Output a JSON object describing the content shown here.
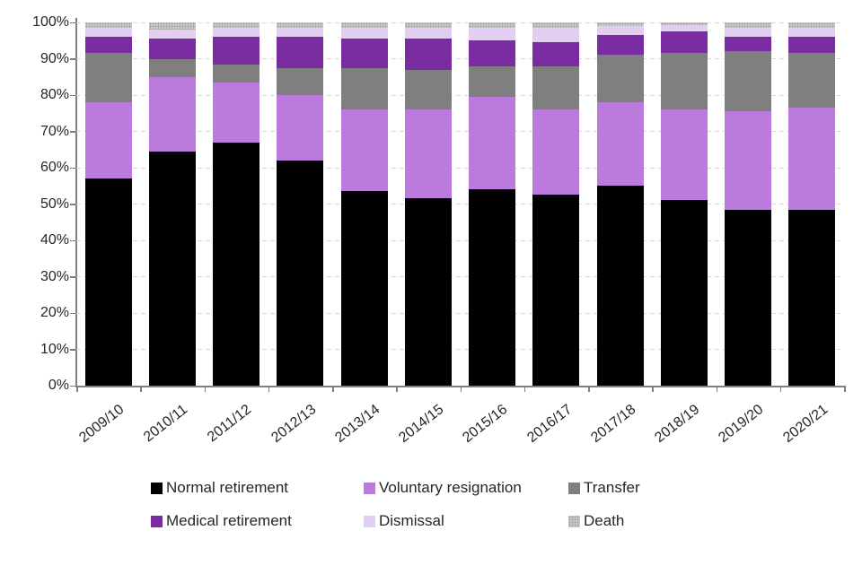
{
  "chart_data": {
    "type": "bar",
    "variant": "stacked-100-percent",
    "title": "",
    "xlabel": "",
    "ylabel": "",
    "grid": "dashed horizontal gridlines",
    "legend_position": "bottom, 2 rows x 3 columns",
    "stack_order": "bottom to top follows series order",
    "categories": [
      "2009/10",
      "2010/11",
      "2011/12",
      "2012/13",
      "2013/14",
      "2014/15",
      "2015/16",
      "2016/17",
      "2017/18",
      "2018/19",
      "2019/20",
      "2020/21"
    ],
    "series": [
      {
        "name": "Normal retirement",
        "color": "#000000",
        "values": [
          57,
          64.5,
          67,
          62,
          53.5,
          51.5,
          54,
          52.5,
          55,
          51,
          48.5,
          48.5
        ]
      },
      {
        "name": "Voluntary resignation",
        "color": "#ba7bdc",
        "values": [
          21,
          20.5,
          16.5,
          18,
          22.5,
          24.5,
          25.5,
          23.5,
          23,
          25,
          27,
          28
        ]
      },
      {
        "name": "Transfer",
        "color": "#7f7f7f",
        "values": [
          13.5,
          5,
          5,
          7.5,
          11.5,
          11,
          8.5,
          12,
          13,
          15.5,
          16.5,
          15
        ]
      },
      {
        "name": "Medical retirement",
        "color": "#7a2da1",
        "values": [
          4.5,
          5.5,
          7.5,
          8.5,
          8,
          8.5,
          7,
          6.5,
          5.5,
          6,
          4,
          4.5
        ]
      },
      {
        "name": "Dismissal",
        "color": "#e2cef0",
        "values": [
          2.5,
          2.5,
          2.5,
          2.5,
          3,
          3,
          3.5,
          4,
          2.5,
          1.8,
          2.5,
          2.5
        ]
      },
      {
        "name": "Death",
        "color": "#cbcbcb",
        "texture": "dots",
        "values": [
          1.5,
          2,
          1.5,
          1.5,
          1.5,
          1.5,
          1.5,
          1.5,
          1,
          0.7,
          1.5,
          1.5
        ]
      }
    ],
    "y_axis": {
      "min": 0,
      "max": 100,
      "tick_labels": [
        "0%",
        "10%",
        "20%",
        "30%",
        "40%",
        "50%",
        "60%",
        "70%",
        "80%",
        "90%",
        "100%"
      ]
    }
  },
  "style": {
    "gridline_color": "#d9d9d9",
    "axis_color": "#7f7f7f",
    "text_color": "#262626"
  }
}
